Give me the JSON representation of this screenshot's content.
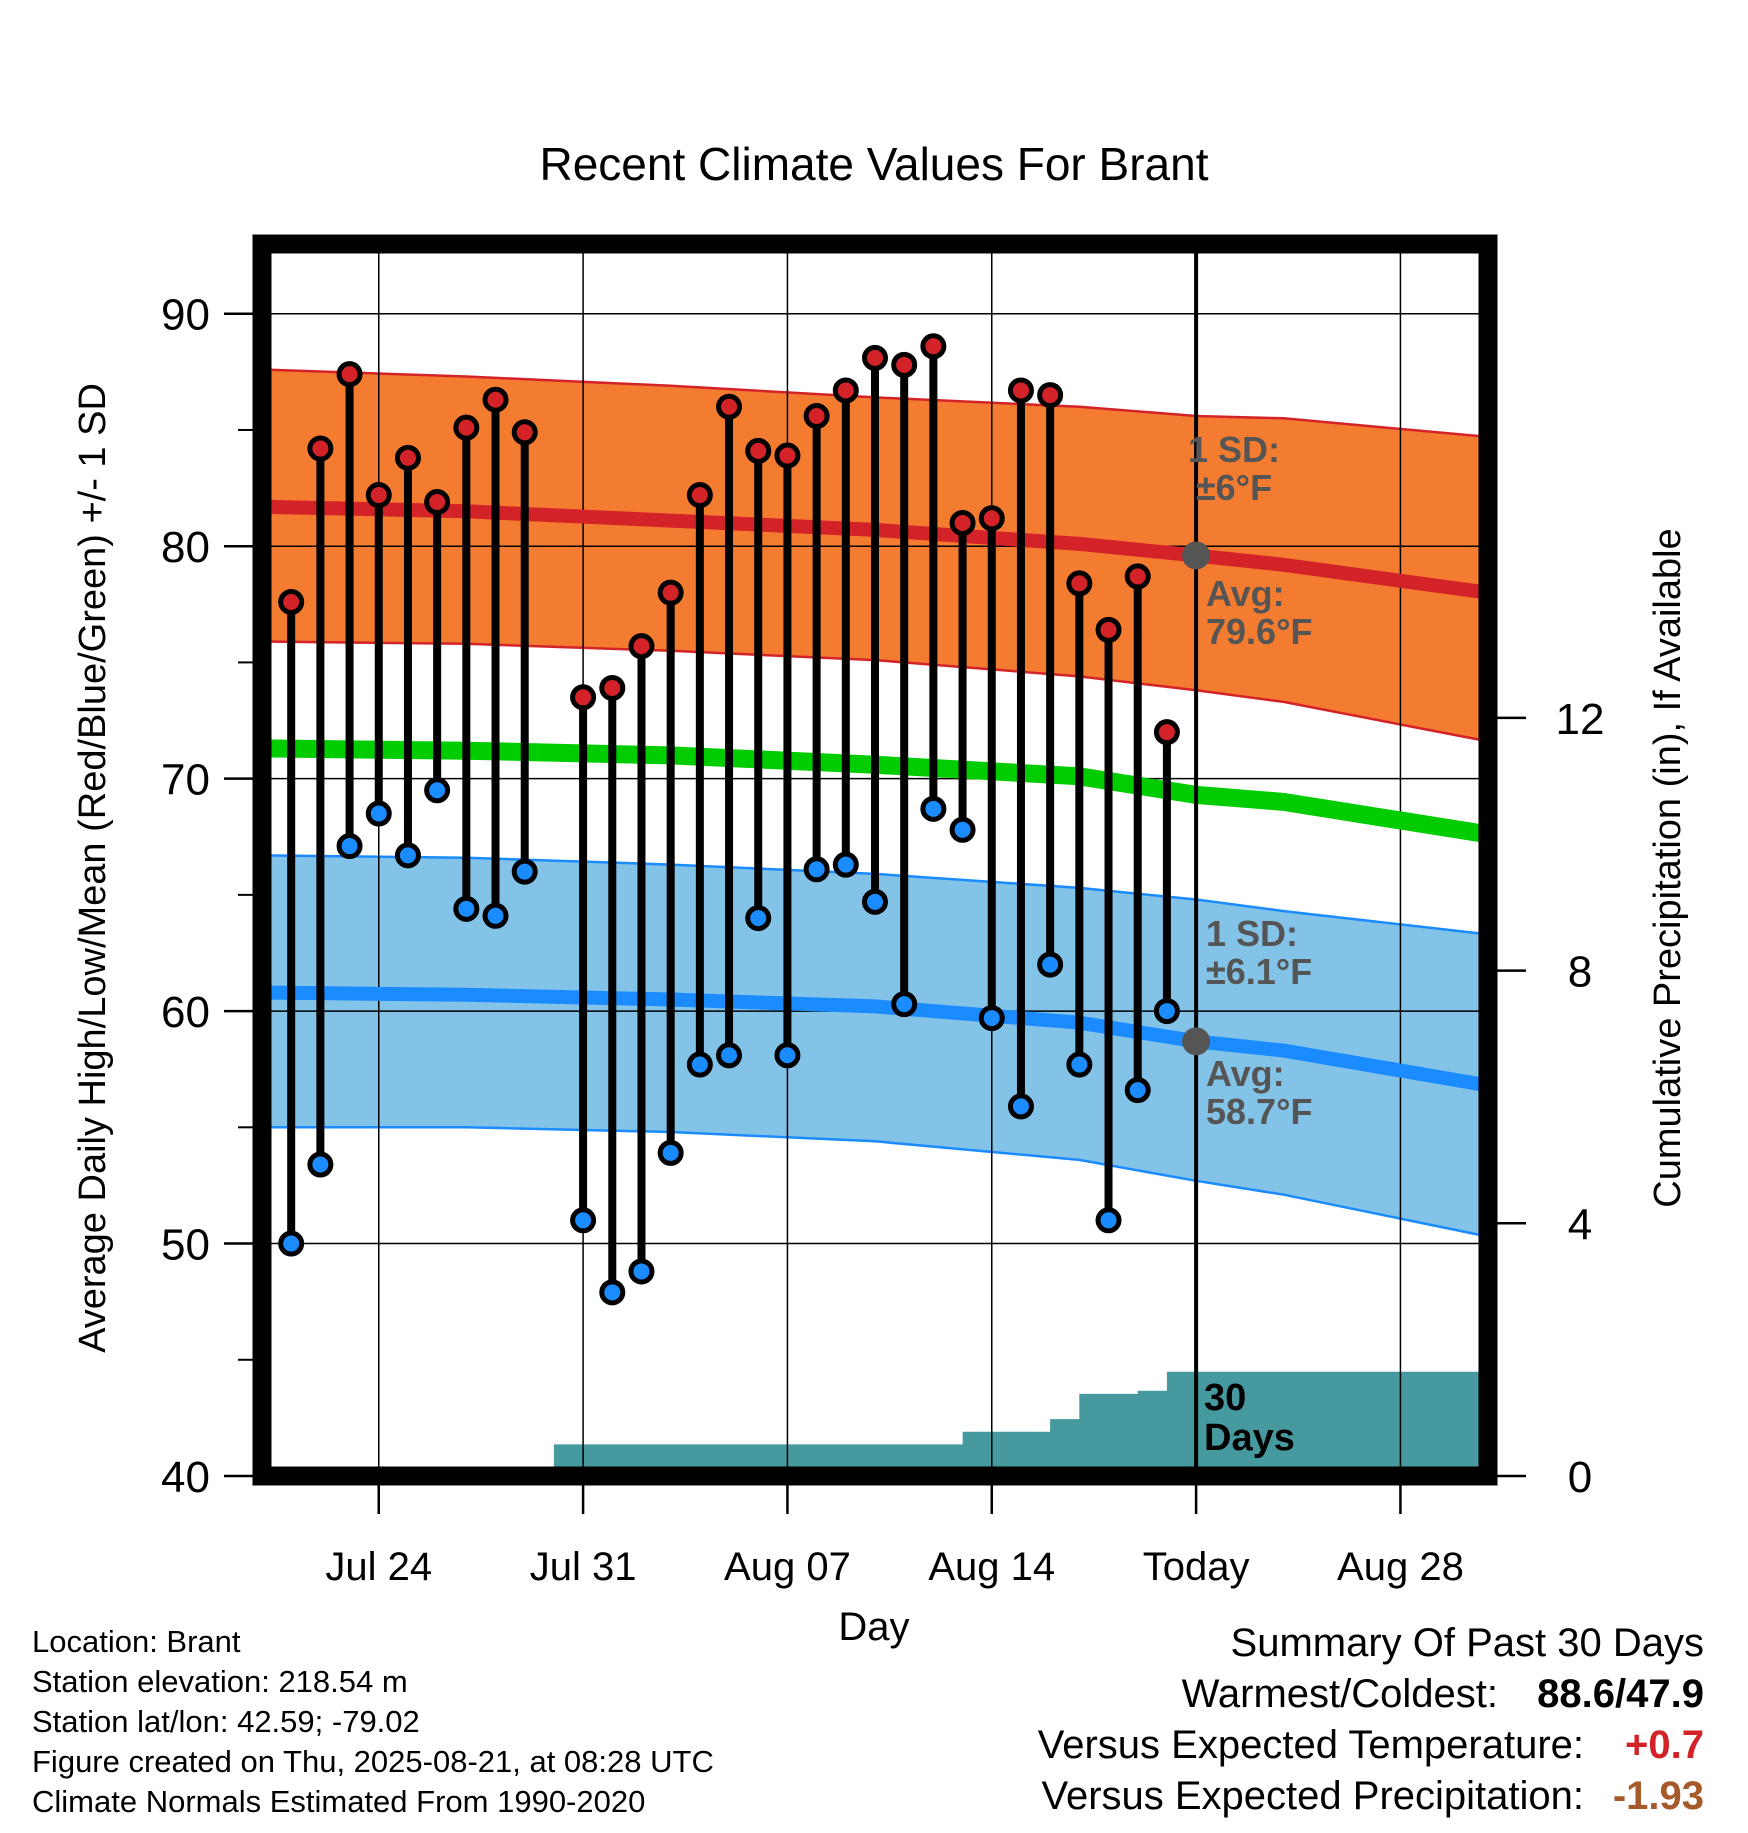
{
  "chart_data": {
    "type": "line",
    "title": "Recent Climate Values For Brant",
    "xlabel": "Day",
    "ylabel": "Average Daily High/Low/Mean (Red/Blue/Green) +/- 1 SD",
    "y2label": "Cumulative Precipitation (in), If Available",
    "ylim": [
      40,
      93
    ],
    "y_ticks": [
      "40",
      "50",
      "60",
      "70",
      "80",
      "90"
    ],
    "y2lim": [
      0,
      19.5
    ],
    "y2_ticks": [
      "0",
      "4",
      "8",
      "12"
    ],
    "x_range": [
      "2025-07-20",
      "2025-08-31"
    ],
    "x_ticks": [
      {
        "date": "2025-07-24",
        "label": "Jul 24"
      },
      {
        "date": "2025-07-31",
        "label": "Jul 31"
      },
      {
        "date": "2025-08-07",
        "label": "Aug 07"
      },
      {
        "date": "2025-08-14",
        "label": "Aug 14"
      },
      {
        "date": "2025-08-21",
        "label": "Today"
      },
      {
        "date": "2025-08-28",
        "label": "Aug 28"
      }
    ],
    "today": "2025-08-21",
    "grid": true,
    "colors": {
      "high_band": "#f47c30",
      "high_line": "#d42328",
      "low_band": "#84c3e8",
      "low_line": "#1a8cff",
      "mean_line": "#00cc00",
      "precip": "#45999f",
      "marker_high": "#d42328",
      "marker_low": "#1a8cff",
      "annotation": "#555555"
    },
    "normals": {
      "dates": [
        "2025-07-20",
        "2025-07-27",
        "2025-08-03",
        "2025-08-10",
        "2025-08-17",
        "2025-08-21",
        "2025-08-24",
        "2025-08-31"
      ],
      "high_mean": [
        81.7,
        81.5,
        81.1,
        80.7,
        80.1,
        79.6,
        79.2,
        78.0
      ],
      "high_plus_sd": [
        87.6,
        87.3,
        86.9,
        86.4,
        86.0,
        85.6,
        85.5,
        84.7
      ],
      "high_minus_sd": [
        75.9,
        75.8,
        75.5,
        75.1,
        74.4,
        73.8,
        73.3,
        71.6
      ],
      "mean": [
        71.3,
        71.2,
        71.0,
        70.6,
        70.1,
        69.3,
        69.0,
        67.6
      ],
      "low_mean": [
        60.8,
        60.7,
        60.5,
        60.2,
        59.5,
        58.7,
        58.3,
        56.8
      ],
      "low_plus_sd": [
        66.7,
        66.6,
        66.3,
        65.9,
        65.3,
        64.8,
        64.3,
        63.3
      ],
      "low_minus_sd": [
        55.0,
        55.0,
        54.8,
        54.4,
        53.6,
        52.7,
        52.1,
        50.3
      ]
    },
    "series": [
      {
        "name": "High",
        "dates": [
          "2025-07-21",
          "2025-07-22",
          "2025-07-23",
          "2025-07-24",
          "2025-07-25",
          "2025-07-26",
          "2025-07-27",
          "2025-07-28",
          "2025-07-29",
          "2025-07-30",
          "2025-07-31",
          "2025-08-01",
          "2025-08-02",
          "2025-08-03",
          "2025-08-04",
          "2025-08-05",
          "2025-08-06",
          "2025-08-07",
          "2025-08-08",
          "2025-08-09",
          "2025-08-10",
          "2025-08-11",
          "2025-08-12",
          "2025-08-13",
          "2025-08-14",
          "2025-08-15",
          "2025-08-16",
          "2025-08-17",
          "2025-08-18",
          "2025-08-19",
          "2025-08-20"
        ],
        "values": [
          77.6,
          84.2,
          87.4,
          82.2,
          83.8,
          81.9,
          85.1,
          86.3,
          84.9,
          null,
          73.5,
          73.9,
          75.7,
          78.0,
          82.2,
          86.0,
          84.1,
          83.9,
          85.6,
          86.7,
          88.1,
          87.8,
          88.6,
          81.0,
          81.2,
          86.7,
          86.5,
          78.4,
          76.4,
          78.7,
          72.0
        ]
      },
      {
        "name": "Low",
        "dates": [
          "2025-07-21",
          "2025-07-22",
          "2025-07-23",
          "2025-07-24",
          "2025-07-25",
          "2025-07-26",
          "2025-07-27",
          "2025-07-28",
          "2025-07-29",
          "2025-07-30",
          "2025-07-31",
          "2025-08-01",
          "2025-08-02",
          "2025-08-03",
          "2025-08-04",
          "2025-08-05",
          "2025-08-06",
          "2025-08-07",
          "2025-08-08",
          "2025-08-09",
          "2025-08-10",
          "2025-08-11",
          "2025-08-12",
          "2025-08-13",
          "2025-08-14",
          "2025-08-15",
          "2025-08-16",
          "2025-08-17",
          "2025-08-18",
          "2025-08-19",
          "2025-08-20"
        ],
        "values": [
          50.0,
          53.4,
          67.1,
          68.5,
          66.7,
          69.5,
          64.4,
          64.1,
          66.0,
          null,
          51.0,
          47.9,
          48.8,
          53.9,
          57.7,
          58.1,
          64.0,
          58.1,
          66.1,
          66.3,
          64.7,
          60.3,
          68.7,
          67.8,
          59.7,
          55.9,
          62.0,
          57.7,
          51.0,
          56.6,
          60.0
        ]
      },
      {
        "name": "Cumulative Precipitation",
        "dates": [
          "2025-07-20",
          "2025-07-25",
          "2025-07-26",
          "2025-07-29",
          "2025-07-30",
          "2025-08-12",
          "2025-08-13",
          "2025-08-15",
          "2025-08-16",
          "2025-08-17",
          "2025-08-18",
          "2025-08-19",
          "2025-08-20",
          "2025-08-31"
        ],
        "values": [
          0.0,
          0.0,
          0.1,
          0.1,
          0.5,
          0.5,
          0.7,
          0.7,
          0.9,
          1.3,
          1.3,
          1.35,
          1.65,
          1.65
        ]
      }
    ],
    "annotations": {
      "high_sd": [
        "1 SD:",
        "±6°F"
      ],
      "high_avg": [
        "Avg:",
        "79.6°F"
      ],
      "low_sd": [
        "1 SD:",
        "±6.1°F"
      ],
      "low_avg": [
        "Avg:",
        "58.7°F"
      ],
      "precip_days": [
        "30",
        "Days"
      ]
    }
  },
  "info": {
    "location": "Location: Brant",
    "elevation": "Station elevation: 218.54 m",
    "latlon": "Station lat/lon: 42.59; -79.02",
    "created": "Figure created on Thu, 2025-08-21, at 08:28 UTC",
    "normals": "Climate Normals Estimated From 1990-2020"
  },
  "summary": {
    "title": "Summary Of Past 30 Days",
    "warmest_label": "Warmest/Coldest:",
    "warmest_value": "88.6/47.9",
    "temp_label": "Versus Expected Temperature:",
    "temp_value": "+0.7",
    "temp_color": "#d42328",
    "precip_label": "Versus Expected Precipitation:",
    "precip_value": "-1.93",
    "precip_color": "#a65a2a"
  }
}
